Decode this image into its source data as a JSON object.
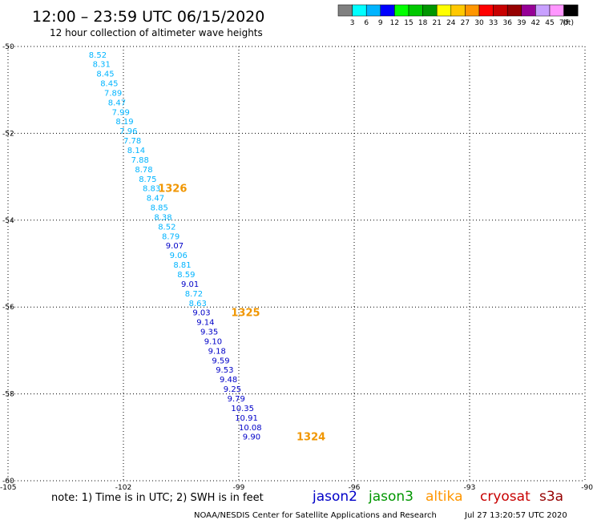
{
  "header": {
    "title": "12:00 – 23:59 UTC 06/15/2020",
    "subtitle": "12 hour collection of altimeter wave heights"
  },
  "colorbar": {
    "colors": [
      "#808080",
      "#00ffff",
      "#00b4ff",
      "#0000ff",
      "#00ff00",
      "#00c800",
      "#009600",
      "#ffff00",
      "#ffc800",
      "#ff9600",
      "#ff0000",
      "#c80000",
      "#960000",
      "#960096",
      "#c8a0ff",
      "#ff96ff",
      "#000000"
    ],
    "labels": [
      "3",
      "6",
      "9",
      "12",
      "15",
      "18",
      "21",
      "24",
      "27",
      "30",
      "33",
      "36",
      "39",
      "42",
      "45",
      "70"
    ],
    "unit": "(ft)"
  },
  "chart_data": {
    "type": "scatter",
    "x_ticks": [
      "-105",
      "-102",
      "-99",
      "-96",
      "-93",
      "-90"
    ],
    "y_ticks": [
      "-50",
      "-52",
      "-54",
      "-56",
      "-58",
      "-60"
    ],
    "xlim": [
      -105,
      -90
    ],
    "ylim": [
      -60,
      -50
    ],
    "grid": true,
    "points": [
      {
        "lon": -102.9,
        "lat": -50.18,
        "label": "8.52",
        "color": "#00b4ff"
      },
      {
        "lon": -102.8,
        "lat": -50.4,
        "label": "8.31",
        "color": "#00b4ff"
      },
      {
        "lon": -102.7,
        "lat": -50.62,
        "label": "8.45",
        "color": "#00b4ff"
      },
      {
        "lon": -102.6,
        "lat": -50.84,
        "label": "8.45",
        "color": "#00b4ff"
      },
      {
        "lon": -102.5,
        "lat": -51.06,
        "label": "7.89",
        "color": "#00b4ff"
      },
      {
        "lon": -102.4,
        "lat": -51.28,
        "label": "8.47",
        "color": "#00b4ff"
      },
      {
        "lon": -102.3,
        "lat": -51.5,
        "label": "7.99",
        "color": "#00b4ff"
      },
      {
        "lon": -102.2,
        "lat": -51.72,
        "label": "8.19",
        "color": "#00b4ff"
      },
      {
        "lon": -102.1,
        "lat": -51.94,
        "label": "7.96",
        "color": "#00b4ff"
      },
      {
        "lon": -102.0,
        "lat": -52.16,
        "label": "7.78",
        "color": "#00b4ff"
      },
      {
        "lon": -101.9,
        "lat": -52.38,
        "label": "8.14",
        "color": "#00b4ff"
      },
      {
        "lon": -101.8,
        "lat": -52.6,
        "label": "7.88",
        "color": "#00b4ff"
      },
      {
        "lon": -101.7,
        "lat": -52.82,
        "label": "8.78",
        "color": "#00b4ff"
      },
      {
        "lon": -101.6,
        "lat": -53.04,
        "label": "8.75",
        "color": "#00b4ff"
      },
      {
        "lon": -101.5,
        "lat": -53.26,
        "label": "8.83",
        "color": "#00b4ff"
      },
      {
        "lon": -101.4,
        "lat": -53.48,
        "label": "8.47",
        "color": "#00b4ff"
      },
      {
        "lon": -101.3,
        "lat": -53.7,
        "label": "8.85",
        "color": "#00b4ff"
      },
      {
        "lon": -101.2,
        "lat": -53.92,
        "label": "8.38",
        "color": "#00b4ff"
      },
      {
        "lon": -101.1,
        "lat": -54.14,
        "label": "8.52",
        "color": "#00b4ff"
      },
      {
        "lon": -101.0,
        "lat": -54.36,
        "label": "8.79",
        "color": "#00b4ff"
      },
      {
        "lon": -100.9,
        "lat": -54.58,
        "label": "9.07",
        "color": "#0000c8"
      },
      {
        "lon": -100.8,
        "lat": -54.8,
        "label": "9.06",
        "color": "#00b4ff"
      },
      {
        "lon": -100.7,
        "lat": -55.02,
        "label": "8.81",
        "color": "#00b4ff"
      },
      {
        "lon": -100.6,
        "lat": -55.24,
        "label": "8.59",
        "color": "#00b4ff"
      },
      {
        "lon": -100.5,
        "lat": -55.46,
        "label": "9.01",
        "color": "#0000c8"
      },
      {
        "lon": -100.4,
        "lat": -55.68,
        "label": "8.72",
        "color": "#00b4ff"
      },
      {
        "lon": -100.3,
        "lat": -55.9,
        "label": "8.63",
        "color": "#00b4ff"
      },
      {
        "lon": -100.2,
        "lat": -56.12,
        "label": "9.03",
        "color": "#0000c8"
      },
      {
        "lon": -100.1,
        "lat": -56.34,
        "label": "9.14",
        "color": "#0000c8"
      },
      {
        "lon": -100.0,
        "lat": -56.56,
        "label": "9.35",
        "color": "#0000c8"
      },
      {
        "lon": -99.9,
        "lat": -56.78,
        "label": "9.10",
        "color": "#0000c8"
      },
      {
        "lon": -99.8,
        "lat": -57.0,
        "label": "9.18",
        "color": "#0000c8"
      },
      {
        "lon": -99.7,
        "lat": -57.22,
        "label": "9.59",
        "color": "#0000c8"
      },
      {
        "lon": -99.6,
        "lat": -57.44,
        "label": "9.53",
        "color": "#0000c8"
      },
      {
        "lon": -99.5,
        "lat": -57.66,
        "label": "9.48",
        "color": "#0000c8"
      },
      {
        "lon": -99.4,
        "lat": -57.88,
        "label": "9.25",
        "color": "#0000c8"
      },
      {
        "lon": -99.3,
        "lat": -58.1,
        "label": "9.79",
        "color": "#0000c8"
      },
      {
        "lon": -99.2,
        "lat": -58.32,
        "label": "10.35",
        "color": "#0000c8"
      },
      {
        "lon": -99.1,
        "lat": -58.54,
        "label": "10.91",
        "color": "#0000c8"
      },
      {
        "lon": -99.0,
        "lat": -58.76,
        "label": "10.08",
        "color": "#0000c8"
      },
      {
        "lon": -98.9,
        "lat": -58.98,
        "label": "9.90",
        "color": "#0000c8"
      }
    ],
    "annotations": [
      {
        "lon": -101.1,
        "lat": -53.26,
        "label": "1326",
        "color": "#f09600"
      },
      {
        "lon": -99.2,
        "lat": -56.12,
        "label": "1325",
        "color": "#f09600"
      },
      {
        "lon": -97.5,
        "lat": -58.98,
        "label": "1324",
        "color": "#f09600"
      }
    ]
  },
  "footer": {
    "note": "note: 1) Time is in UTC; 2) SWH is in feet",
    "legend": [
      {
        "label": "jason2",
        "color": "#0000c8"
      },
      {
        "label": "jason3",
        "color": "#009600"
      },
      {
        "label": "altika",
        "color": "#ff9600"
      },
      {
        "label": "cryosat",
        "color": "#c80000"
      },
      {
        "label": "s3a",
        "color": "#960000"
      }
    ],
    "credit": "NOAA/NESDIS Center for Satellite Applications and Research",
    "timestamp": "Jul 27 13:20:57 UTC 2020"
  }
}
